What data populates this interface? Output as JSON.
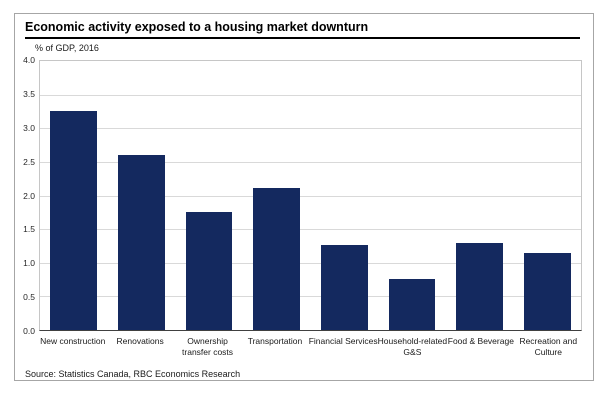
{
  "panel": {
    "title": "Economic activity exposed to a housing market downturn",
    "subtitle": "% of GDP, 2016",
    "source": "Source: Statistics Canada, RBC Economics Research"
  },
  "colors": {
    "bar": "#14295f",
    "gridline": "#d9d9d9",
    "plot_border": "#c6c6c6",
    "axis_line": "#404040",
    "frame_border": "#a6a6a6",
    "title_rule": "#000000",
    "text": "#1a1a1a"
  },
  "chart_data": {
    "type": "bar",
    "title": "Economic activity exposed to a housing market downturn",
    "subtitle": "% of GDP, 2016",
    "categories": [
      "New construction",
      "Renovations",
      "Ownership\ntransfer costs",
      "Transportation",
      "Financial Services",
      "Household-related\nG&S",
      "Food & Beverage",
      "Recreation and\nCulture"
    ],
    "values": [
      3.26,
      2.6,
      1.75,
      2.11,
      1.27,
      0.76,
      1.29,
      1.15
    ],
    "xlabel": "",
    "ylabel": "% of GDP, 2016",
    "ylim": [
      0,
      4
    ],
    "ytick_step": 0.5,
    "ytick_labels": [
      "0.0",
      "0.5",
      "1.0",
      "1.5",
      "2.0",
      "2.5",
      "3.0",
      "3.5",
      "4.0"
    ],
    "grid": true,
    "legend": false,
    "bar_color": "#14295f",
    "source": "Source: Statistics Canada, RBC Economics Research"
  }
}
